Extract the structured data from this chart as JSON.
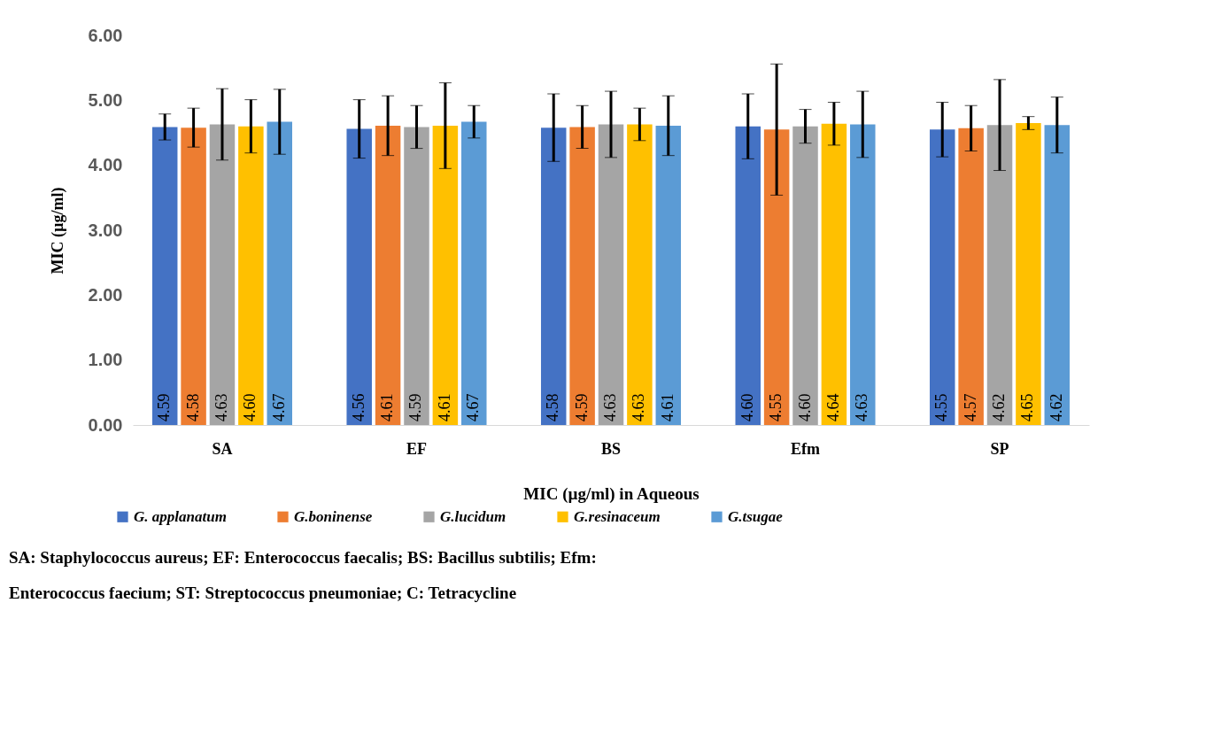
{
  "chart_data": {
    "type": "bar",
    "xlabel": "MIC (µg/ml) in Aqueous",
    "ylabel": "MIC (µg/ml)",
    "categories": [
      "SA",
      "EF",
      "BS",
      "Efm",
      "SP"
    ],
    "series": [
      {
        "name": "G. applanatum",
        "color": "#4472c4",
        "values": [
          4.59,
          4.56,
          4.58,
          4.6,
          4.55
        ],
        "value_labels": [
          "4.59",
          "4.56",
          "4.58",
          "4.60",
          "4.55"
        ],
        "errors": [
          0.2,
          0.45,
          0.52,
          0.5,
          0.42
        ]
      },
      {
        "name": "G.boninense",
        "color": "#ed7d31",
        "values": [
          4.58,
          4.61,
          4.59,
          4.55,
          4.57
        ],
        "value_labels": [
          "4.58",
          "4.61",
          "4.59",
          "4.55",
          "4.57"
        ],
        "errors": [
          0.3,
          0.46,
          0.33,
          1.01,
          0.35
        ]
      },
      {
        "name": "G.lucidum",
        "color": "#a5a5a5",
        "values": [
          4.63,
          4.59,
          4.63,
          4.6,
          4.62
        ],
        "value_labels": [
          "4.63",
          "4.59",
          "4.63",
          "4.60",
          "4.62"
        ],
        "errors": [
          0.55,
          0.33,
          0.51,
          0.26,
          0.7
        ]
      },
      {
        "name": "G.resinaceum",
        "color": "#ffc000",
        "values": [
          4.6,
          4.61,
          4.63,
          4.64,
          4.65
        ],
        "value_labels": [
          "4.60",
          "4.61",
          "4.63",
          "4.64",
          "4.65"
        ],
        "errors": [
          0.41,
          0.66,
          0.25,
          0.33,
          0.1
        ]
      },
      {
        "name": "G.tsugae",
        "color": "#5b9bd5",
        "values": [
          4.67,
          4.67,
          4.61,
          4.63,
          4.62
        ],
        "value_labels": [
          "4.67",
          "4.67",
          "4.61",
          "4.63",
          "4.62"
        ],
        "errors": [
          0.5,
          0.25,
          0.46,
          0.51,
          0.43
        ]
      }
    ],
    "ylim": [
      0,
      6
    ],
    "yticks": [
      {
        "value": 0,
        "label": "0.00"
      },
      {
        "value": 1,
        "label": "1.00"
      },
      {
        "value": 2,
        "label": "2.00"
      },
      {
        "value": 3,
        "label": "3.00"
      },
      {
        "value": 4,
        "label": "4.00"
      },
      {
        "value": 5,
        "label": "5.00"
      },
      {
        "value": 6,
        "label": "6.00"
      }
    ],
    "grid": false,
    "legend": "bottom",
    "annotations": [
      "SA: Staphylococcus aureus; EF: Enterococcus faecalis; BS: Bacillus subtilis; Efm:",
      "Enterococcus faecium; ST: Streptococcus pneumoniae; C: Tetracycline"
    ]
  }
}
